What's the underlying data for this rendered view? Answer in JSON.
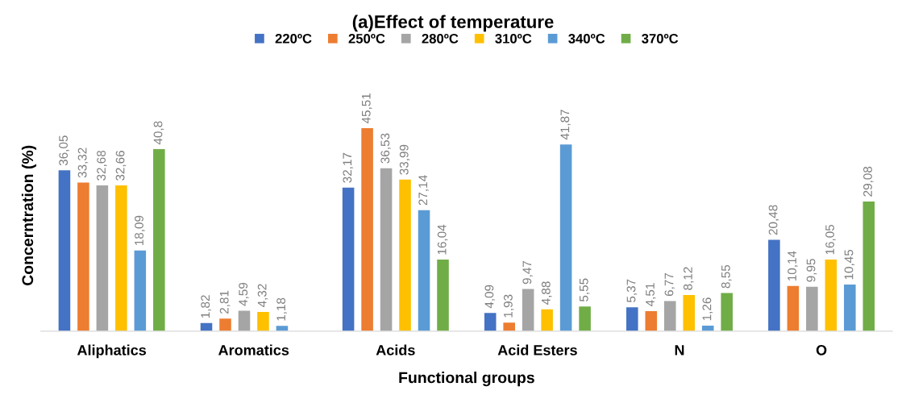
{
  "chart_data": {
    "type": "bar",
    "title": "(a)Effect of temperature",
    "xlabel": "Functional groups",
    "ylabel": "Concerntration (%)",
    "categories": [
      "Aliphatics",
      "Aromatics",
      "Acids",
      "Acid Esters",
      "N",
      "O"
    ],
    "series": [
      {
        "name": "220ºC",
        "color": "#4472c4",
        "values": [
          36.05,
          1.82,
          32.17,
          4.09,
          5.37,
          20.48
        ],
        "value_labels": [
          "36,05",
          "1,82",
          "32,17",
          "4,09",
          "5,37",
          "20,48"
        ]
      },
      {
        "name": "250ºC",
        "color": "#ed7d31",
        "values": [
          33.32,
          2.81,
          45.51,
          1.93,
          4.51,
          10.14
        ],
        "value_labels": [
          "33,32",
          "2,81",
          "45,51",
          "1,93",
          "4,51",
          "10,14"
        ]
      },
      {
        "name": "280ºC",
        "color": "#a5a5a5",
        "values": [
          32.68,
          4.59,
          36.53,
          9.47,
          6.77,
          9.95
        ],
        "value_labels": [
          "32,68",
          "4,59",
          "36,53",
          "9,47",
          "6,77",
          "9,95"
        ]
      },
      {
        "name": "310ºC",
        "color": "#ffc000",
        "values": [
          32.66,
          4.32,
          33.99,
          4.88,
          8.12,
          16.05
        ],
        "value_labels": [
          "32,66",
          "4,32",
          "33,99",
          "4,88",
          "8,12",
          "16,05"
        ]
      },
      {
        "name": "340ºC",
        "color": "#5b9bd5",
        "values": [
          18.09,
          1.18,
          27.14,
          41.87,
          1.26,
          10.45
        ],
        "value_labels": [
          "18,09",
          "1,18",
          "27,14",
          "41,87",
          "1,26",
          "10,45"
        ]
      },
      {
        "name": "370ºC",
        "color": "#70ad47",
        "values": [
          40.8,
          null,
          16.04,
          5.55,
          8.55,
          29.08
        ],
        "value_labels": [
          "40,8",
          null,
          "16,04",
          "5,55",
          "8,55",
          "29,08"
        ]
      }
    ],
    "legend": "top",
    "grid": false,
    "tick_labels": "x"
  }
}
